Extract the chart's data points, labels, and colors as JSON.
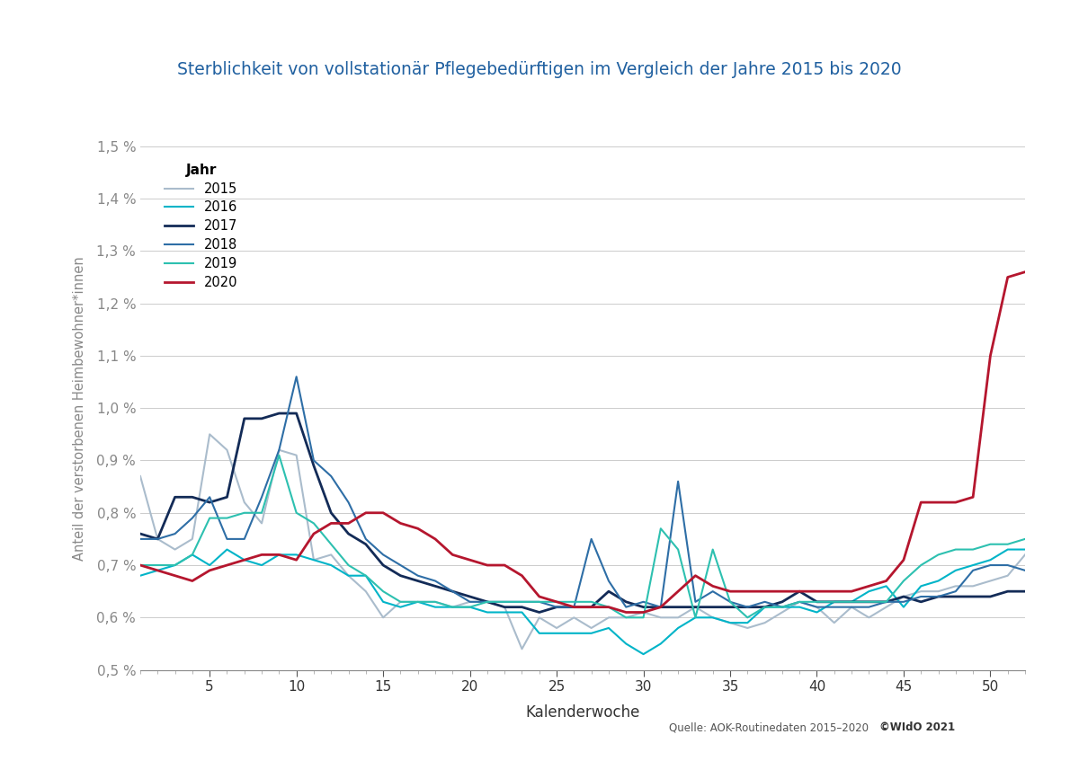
{
  "title": "Sterblichkeit von vollstationär Pflegebedürftigen im Vergleich der Jahre 2015 bis 2020",
  "xlabel": "Kalenderwoche",
  "ylabel": "Anteil der verstorbenen Heimbewohner*innen",
  "source": "Quelle: AOK-Routinedaten 2015–2020  ©WIdO 2021",
  "source_bold": "©WIdO 2021",
  "legend_title": "Jahr",
  "ylim": [
    0.005,
    0.015
  ],
  "yticks": [
    0.005,
    0.006,
    0.007,
    0.008,
    0.009,
    0.01,
    0.011,
    0.012,
    0.013,
    0.014,
    0.015
  ],
  "ytick_labels": [
    "0,5 %",
    "0,6 %",
    "0,7 %",
    "0,8 %",
    "0,9 %",
    "1,0 %",
    "1,1 %",
    "1,2 %",
    "1,3 %",
    "1,4 %",
    "1,5 %"
  ],
  "xticks": [
    5,
    10,
    15,
    20,
    25,
    30,
    35,
    40,
    45,
    50
  ],
  "series": {
    "2015": {
      "color": "#AABCCC",
      "linewidth": 1.5,
      "values": [
        0.0087,
        0.0075,
        0.0073,
        0.0075,
        0.0095,
        0.0092,
        0.0082,
        0.0078,
        0.0092,
        0.0091,
        0.0071,
        0.0072,
        0.0068,
        0.0065,
        0.006,
        0.0063,
        0.0063,
        0.0063,
        0.0062,
        0.0063,
        0.0063,
        0.0062,
        0.0054,
        0.006,
        0.0058,
        0.006,
        0.0058,
        0.006,
        0.006,
        0.0061,
        0.006,
        0.006,
        0.0062,
        0.006,
        0.0059,
        0.0058,
        0.0059,
        0.0061,
        0.0063,
        0.0062,
        0.0059,
        0.0062,
        0.006,
        0.0062,
        0.0064,
        0.0065,
        0.0065,
        0.0066,
        0.0066,
        0.0067,
        0.0068,
        0.0072
      ]
    },
    "2016": {
      "color": "#00B4C8",
      "linewidth": 1.5,
      "values": [
        0.0068,
        0.0069,
        0.007,
        0.0072,
        0.007,
        0.0073,
        0.0071,
        0.007,
        0.0072,
        0.0072,
        0.0071,
        0.007,
        0.0068,
        0.0068,
        0.0063,
        0.0062,
        0.0063,
        0.0062,
        0.0062,
        0.0062,
        0.0061,
        0.0061,
        0.0061,
        0.0057,
        0.0057,
        0.0057,
        0.0057,
        0.0058,
        0.0055,
        0.0053,
        0.0055,
        0.0058,
        0.006,
        0.006,
        0.0059,
        0.0059,
        0.0062,
        0.0062,
        0.0062,
        0.0061,
        0.0063,
        0.0063,
        0.0065,
        0.0066,
        0.0062,
        0.0066,
        0.0067,
        0.0069,
        0.007,
        0.0071,
        0.0073,
        0.0073
      ]
    },
    "2017": {
      "color": "#132B57",
      "linewidth": 2.0,
      "values": [
        0.0076,
        0.0075,
        0.0083,
        0.0083,
        0.0082,
        0.0083,
        0.0098,
        0.0098,
        0.0099,
        0.0099,
        0.0089,
        0.008,
        0.0076,
        0.0074,
        0.007,
        0.0068,
        0.0067,
        0.0066,
        0.0065,
        0.0064,
        0.0063,
        0.0062,
        0.0062,
        0.0061,
        0.0062,
        0.0062,
        0.0062,
        0.0065,
        0.0063,
        0.0062,
        0.0062,
        0.0062,
        0.0062,
        0.0062,
        0.0062,
        0.0062,
        0.0062,
        0.0063,
        0.0065,
        0.0063,
        0.0063,
        0.0063,
        0.0063,
        0.0063,
        0.0064,
        0.0063,
        0.0064,
        0.0064,
        0.0064,
        0.0064,
        0.0065,
        0.0065
      ]
    },
    "2018": {
      "color": "#2E6EA6",
      "linewidth": 1.5,
      "values": [
        0.0075,
        0.0075,
        0.0076,
        0.0079,
        0.0083,
        0.0075,
        0.0075,
        0.0083,
        0.0092,
        0.0106,
        0.009,
        0.0087,
        0.0082,
        0.0075,
        0.0072,
        0.007,
        0.0068,
        0.0067,
        0.0065,
        0.0063,
        0.0063,
        0.0063,
        0.0063,
        0.0063,
        0.0062,
        0.0062,
        0.0075,
        0.0067,
        0.0062,
        0.0063,
        0.0062,
        0.0086,
        0.0063,
        0.0065,
        0.0063,
        0.0062,
        0.0063,
        0.0062,
        0.0063,
        0.0062,
        0.0062,
        0.0062,
        0.0062,
        0.0063,
        0.0063,
        0.0064,
        0.0064,
        0.0065,
        0.0069,
        0.007,
        0.007,
        0.0069
      ]
    },
    "2019": {
      "color": "#2DC0B0",
      "linewidth": 1.5,
      "values": [
        0.007,
        0.007,
        0.007,
        0.0072,
        0.0079,
        0.0079,
        0.008,
        0.008,
        0.0091,
        0.008,
        0.0078,
        0.0074,
        0.007,
        0.0068,
        0.0065,
        0.0063,
        0.0063,
        0.0063,
        0.0062,
        0.0062,
        0.0063,
        0.0063,
        0.0063,
        0.0063,
        0.0063,
        0.0063,
        0.0063,
        0.0062,
        0.006,
        0.006,
        0.0077,
        0.0073,
        0.006,
        0.0073,
        0.0063,
        0.006,
        0.0062,
        0.0062,
        0.0063,
        0.0063,
        0.0063,
        0.0063,
        0.0063,
        0.0063,
        0.0067,
        0.007,
        0.0072,
        0.0073,
        0.0073,
        0.0074,
        0.0074,
        0.0075
      ]
    },
    "2020": {
      "color": "#B5162E",
      "linewidth": 2.0,
      "values": [
        0.007,
        0.0069,
        0.0068,
        0.0067,
        0.0069,
        0.007,
        0.0071,
        0.0072,
        0.0072,
        0.0071,
        0.0076,
        0.0078,
        0.0078,
        0.008,
        0.008,
        0.0078,
        0.0077,
        0.0075,
        0.0072,
        0.0071,
        0.007,
        0.007,
        0.0068,
        0.0064,
        0.0063,
        0.0062,
        0.0062,
        0.0062,
        0.0061,
        0.0061,
        0.0062,
        0.0065,
        0.0068,
        0.0066,
        0.0065,
        0.0065,
        0.0065,
        0.0065,
        0.0065,
        0.0065,
        0.0065,
        0.0065,
        0.0066,
        0.0067,
        0.0071,
        0.0082,
        0.0082,
        0.0082,
        0.0083,
        0.011,
        0.0125,
        0.0126
      ]
    }
  }
}
